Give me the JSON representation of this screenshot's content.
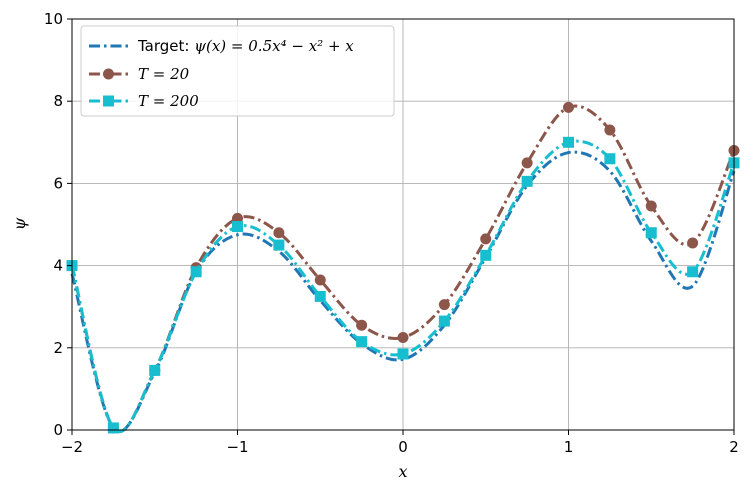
{
  "chart_data": {
    "type": "line",
    "title": "",
    "xlabel": "x",
    "ylabel": "ψ",
    "xlim": [
      -2,
      2
    ],
    "ylim": [
      0,
      10
    ],
    "xticks": [
      -2,
      -1,
      0,
      1,
      2
    ],
    "xtick_labels": [
      "−2",
      "−1",
      "0",
      "1",
      "2"
    ],
    "yticks": [
      0,
      2,
      4,
      6,
      8,
      10
    ],
    "ytick_labels": [
      "0",
      "2",
      "4",
      "6",
      "8",
      "10"
    ],
    "grid": true,
    "legend_position": "upper-left",
    "x": [
      -2.0,
      -1.75,
      -1.5,
      -1.25,
      -1.0,
      -0.75,
      -0.5,
      -0.25,
      0.0,
      0.25,
      0.5,
      0.75,
      1.0,
      1.25,
      1.5,
      1.75,
      2.0
    ],
    "series": [
      {
        "name": "Target: ψ(x) = 0.5x⁴ − x² + x",
        "legend_parts": {
          "label": "Target: ",
          "formula": "ψ(x) = 0.5x⁴ − x² + x"
        },
        "color": "#1f77b4",
        "marker": "none",
        "style": "dashdot",
        "values": [
          3.8,
          0.05,
          1.4,
          3.85,
          4.75,
          4.35,
          3.15,
          2.1,
          1.72,
          2.55,
          4.2,
          5.95,
          6.75,
          6.3,
          4.6,
          3.5,
          6.3
        ]
      },
      {
        "name": "T = 20",
        "legend_parts": {
          "label": "",
          "formula": "T = 20"
        },
        "color": "#8c564b",
        "marker": "circle",
        "style": "dashdot",
        "values": [
          4.0,
          0.05,
          1.45,
          3.95,
          5.15,
          4.8,
          3.65,
          2.55,
          2.25,
          3.05,
          4.65,
          6.5,
          7.85,
          7.3,
          5.45,
          4.55,
          6.8
        ]
      },
      {
        "name": "T = 200",
        "legend_parts": {
          "label": "",
          "formula": "T = 200"
        },
        "color": "#17becf",
        "marker": "square",
        "style": "dashdot",
        "values": [
          4.0,
          0.05,
          1.45,
          3.85,
          4.95,
          4.5,
          3.25,
          2.15,
          1.85,
          2.65,
          4.25,
          6.05,
          7.0,
          6.6,
          4.8,
          3.85,
          6.5
        ]
      }
    ]
  }
}
